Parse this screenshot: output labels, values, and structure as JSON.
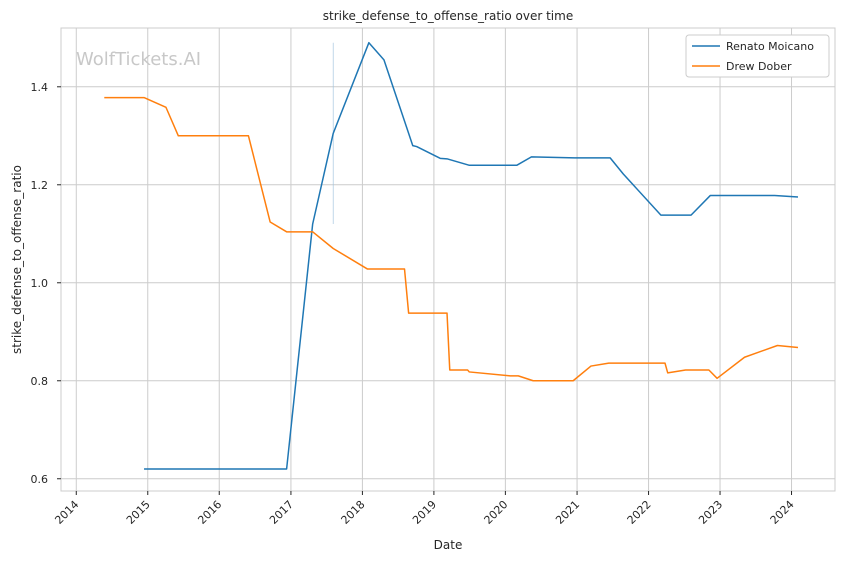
{
  "chart_data": {
    "type": "line",
    "title": "strike_defense_to_offense_ratio over time",
    "xlabel": "Date",
    "ylabel": "strike_defense_to_offense_ratio",
    "watermark": "WolfTickets.AI",
    "grid": true,
    "legend_position": "top-right",
    "xlim": [
      "2013-10-15",
      "2024-08-10"
    ],
    "ylim": [
      0.575,
      1.52
    ],
    "x_ticks": [
      "2014",
      "2015",
      "2016",
      "2017",
      "2018",
      "2019",
      "2020",
      "2021",
      "2022",
      "2023",
      "2024"
    ],
    "y_ticks": [
      "0.6",
      "0.8",
      "1.0",
      "1.2",
      "1.4"
    ],
    "series": [
      {
        "name": "Renato Moicano",
        "color": "#1f77b4",
        "points": [
          [
            "2014-12-13",
            0.62
          ],
          [
            "2016-12-10",
            0.62
          ],
          [
            "2017-04-22",
            1.12
          ],
          [
            "2017-08-05",
            1.305
          ],
          [
            "2018-02-03",
            1.49
          ],
          [
            "2018-04-21",
            1.455
          ],
          [
            "2018-09-15",
            1.28
          ],
          [
            "2018-10-05",
            1.278
          ],
          [
            "2019-02-02",
            1.254
          ],
          [
            "2019-03-09",
            1.253
          ],
          [
            "2019-06-29",
            1.24
          ],
          [
            "2020-02-29",
            1.24
          ],
          [
            "2020-05-13",
            1.257
          ],
          [
            "2020-12-19",
            1.255
          ],
          [
            "2021-06-19",
            1.255
          ],
          [
            "2021-08-25",
            1.222
          ],
          [
            "2022-03-05",
            1.138
          ],
          [
            "2022-03-20",
            1.138
          ],
          [
            "2022-08-06",
            1.138
          ],
          [
            "2022-11-12",
            1.178
          ],
          [
            "2023-10-07",
            1.178
          ],
          [
            "2024-02-03",
            1.175
          ]
        ]
      },
      {
        "name": "Drew Dober",
        "color": "#ff7f0e",
        "points": [
          [
            "2014-05-24",
            1.378
          ],
          [
            "2014-12-13",
            1.378
          ],
          [
            "2015-04-04",
            1.358
          ],
          [
            "2015-06-06",
            1.3
          ],
          [
            "2016-05-29",
            1.3
          ],
          [
            "2016-09-17",
            1.124
          ],
          [
            "2016-12-10",
            1.104
          ],
          [
            "2017-04-22",
            1.104
          ],
          [
            "2017-08-05",
            1.07
          ],
          [
            "2018-01-27",
            1.028
          ],
          [
            "2018-08-04",
            1.028
          ],
          [
            "2018-08-25",
            0.938
          ],
          [
            "2019-03-09",
            0.938
          ],
          [
            "2019-03-23",
            0.822
          ],
          [
            "2019-06-22",
            0.822
          ],
          [
            "2019-07-01",
            0.818
          ],
          [
            "2020-01-25",
            0.81
          ],
          [
            "2020-03-07",
            0.81
          ],
          [
            "2020-05-22",
            0.8
          ],
          [
            "2020-12-12",
            0.8
          ],
          [
            "2021-03-13",
            0.83
          ],
          [
            "2021-06-12",
            0.836
          ],
          [
            "2022-03-26",
            0.836
          ],
          [
            "2022-04-09",
            0.816
          ],
          [
            "2022-07-09",
            0.822
          ],
          [
            "2022-11-05",
            0.822
          ],
          [
            "2022-12-17",
            0.805
          ],
          [
            "2023-05-06",
            0.848
          ],
          [
            "2023-10-21",
            0.872
          ],
          [
            "2024-02-03",
            0.868
          ]
        ]
      }
    ],
    "annotations": [
      {
        "type": "vertical-line",
        "x": "2017-08-05",
        "y_range": [
          1.12,
          1.49
        ]
      }
    ]
  }
}
